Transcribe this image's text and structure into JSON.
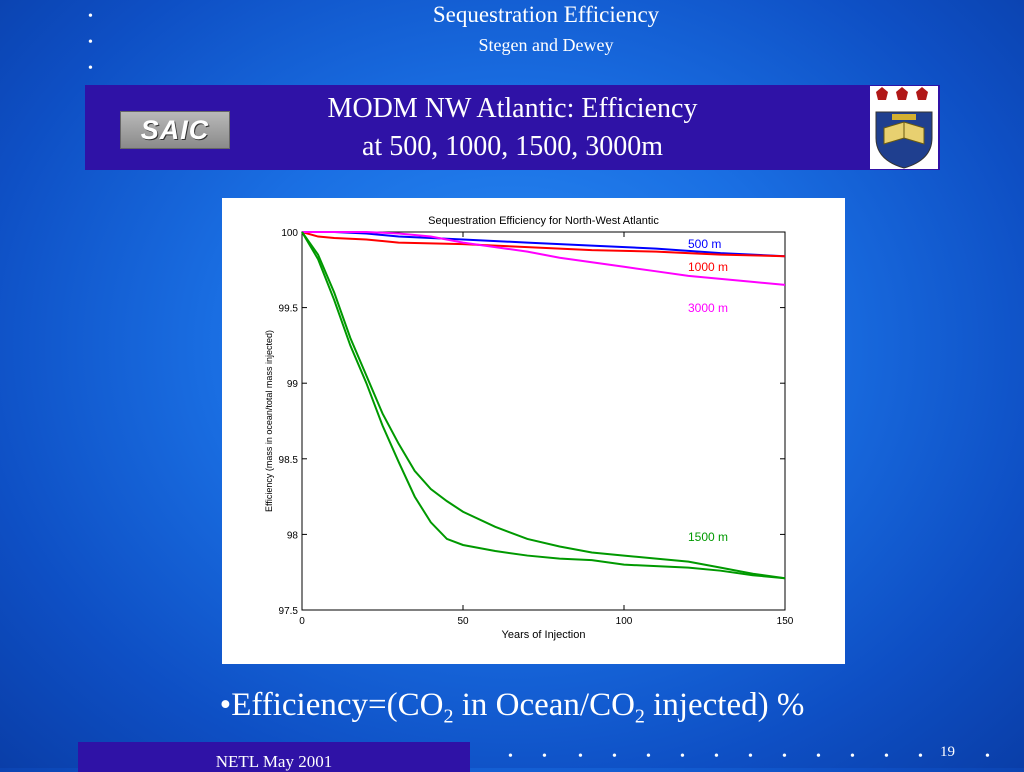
{
  "header": {
    "title": "Sequestration Efficiency",
    "subtitle": "Stegen and Dewey"
  },
  "banner": {
    "line1": "MODM NW Atlantic: Efficiency",
    "line2": "at 500, 1000, 1500, 3000m",
    "logo_left_text": "SAIC"
  },
  "formula": {
    "prefix": "•Efficiency=(CO",
    "sub1": "2",
    "middle": " in Ocean/CO",
    "sub2": "2",
    "suffix": " injected) %"
  },
  "footer": {
    "text": "NETL May 2001",
    "page_number": "19"
  },
  "colors": {
    "background": "#1a6fe3",
    "banner": "#2f12a6",
    "series_500": "#0000ff",
    "series_1000": "#ff0000",
    "series_3000": "#ff00ff",
    "series_1500": "#009900"
  },
  "chart_data": {
    "type": "line",
    "title": "Sequestration Efficiency for North-West Atlantic",
    "xlabel": "Years of Injection",
    "ylabel": "Efficiency  (mass in ocean/total mass injected)",
    "xlim": [
      0,
      150
    ],
    "ylim": [
      97.5,
      100
    ],
    "xticks": [
      "0",
      "50",
      "100",
      "150"
    ],
    "yticks": [
      "97.5",
      "98",
      "98.5",
      "99",
      "99.5",
      "100"
    ],
    "series": [
      {
        "name": "500 m",
        "color": "#0000ff",
        "x": [
          0,
          10,
          20,
          30,
          50,
          70,
          90,
          110,
          130,
          150
        ],
        "y": [
          100,
          100,
          99.99,
          99.97,
          99.95,
          99.93,
          99.91,
          99.89,
          99.86,
          99.84
        ]
      },
      {
        "name": "1000 m",
        "color": "#ff0000",
        "x": [
          0,
          5,
          10,
          20,
          30,
          50,
          70,
          90,
          110,
          130,
          150
        ],
        "y": [
          100,
          99.97,
          99.96,
          99.95,
          99.93,
          99.92,
          99.9,
          99.88,
          99.87,
          99.85,
          99.84
        ]
      },
      {
        "name": "3000 m",
        "color": "#ff00ff",
        "x": [
          0,
          20,
          30,
          40,
          50,
          60,
          70,
          80,
          90,
          100,
          110,
          120,
          130,
          140,
          150
        ],
        "y": [
          100,
          100,
          99.99,
          99.97,
          99.93,
          99.9,
          99.87,
          99.83,
          99.8,
          99.77,
          99.74,
          99.71,
          99.69,
          99.67,
          99.65
        ]
      },
      {
        "name": "1500 m",
        "color": "#009900",
        "x": [
          0,
          5,
          10,
          15,
          20,
          25,
          30,
          35,
          40,
          45,
          50,
          60,
          70,
          80,
          90,
          100,
          110,
          120,
          130,
          140,
          150
        ],
        "y": [
          100,
          99.85,
          99.6,
          99.3,
          99.05,
          98.8,
          98.6,
          98.42,
          98.3,
          98.22,
          98.15,
          98.05,
          97.97,
          97.92,
          97.88,
          97.86,
          97.84,
          97.82,
          97.78,
          97.74,
          97.71
        ]
      },
      {
        "name": "",
        "color": "#009900",
        "x": [
          0,
          5,
          10,
          15,
          20,
          25,
          30,
          35,
          40,
          45,
          50,
          60,
          70,
          80,
          90,
          100,
          110,
          120,
          130,
          140,
          150
        ],
        "y": [
          100,
          99.82,
          99.55,
          99.25,
          99.0,
          98.72,
          98.48,
          98.25,
          98.08,
          97.97,
          97.93,
          97.89,
          97.86,
          97.84,
          97.83,
          97.8,
          97.79,
          97.78,
          97.76,
          97.73,
          97.71
        ]
      }
    ],
    "legend_labels": [
      "500 m",
      "1000 m",
      "3000 m",
      "1500 m"
    ],
    "grid": false
  }
}
